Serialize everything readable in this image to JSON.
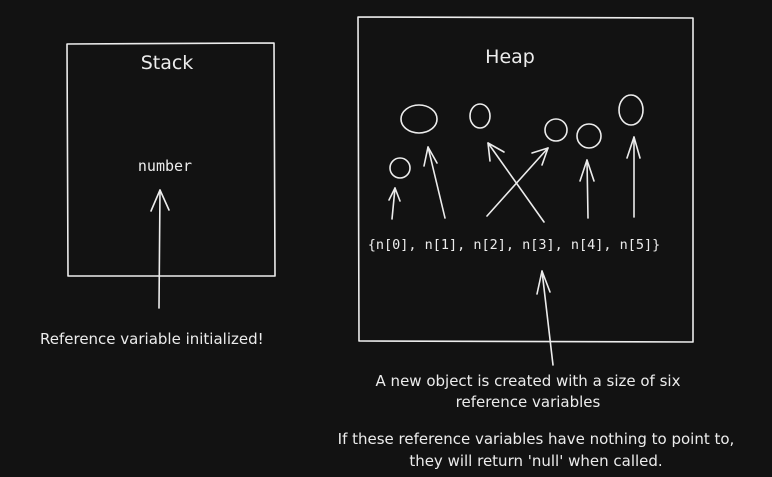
{
  "stack": {
    "title": "Stack",
    "variable": "number",
    "caption": "Reference variable initialized!"
  },
  "heap": {
    "title": "Heap",
    "array_text": "{n[0], n[1], n[2], n[3], n[4], n[5]}",
    "caption_line1": "A new object is created with a size of six",
    "caption_line2": "reference variables",
    "note_line1": "If these reference variables have nothing to point to,",
    "note_line2": "they will return 'null' when called."
  }
}
